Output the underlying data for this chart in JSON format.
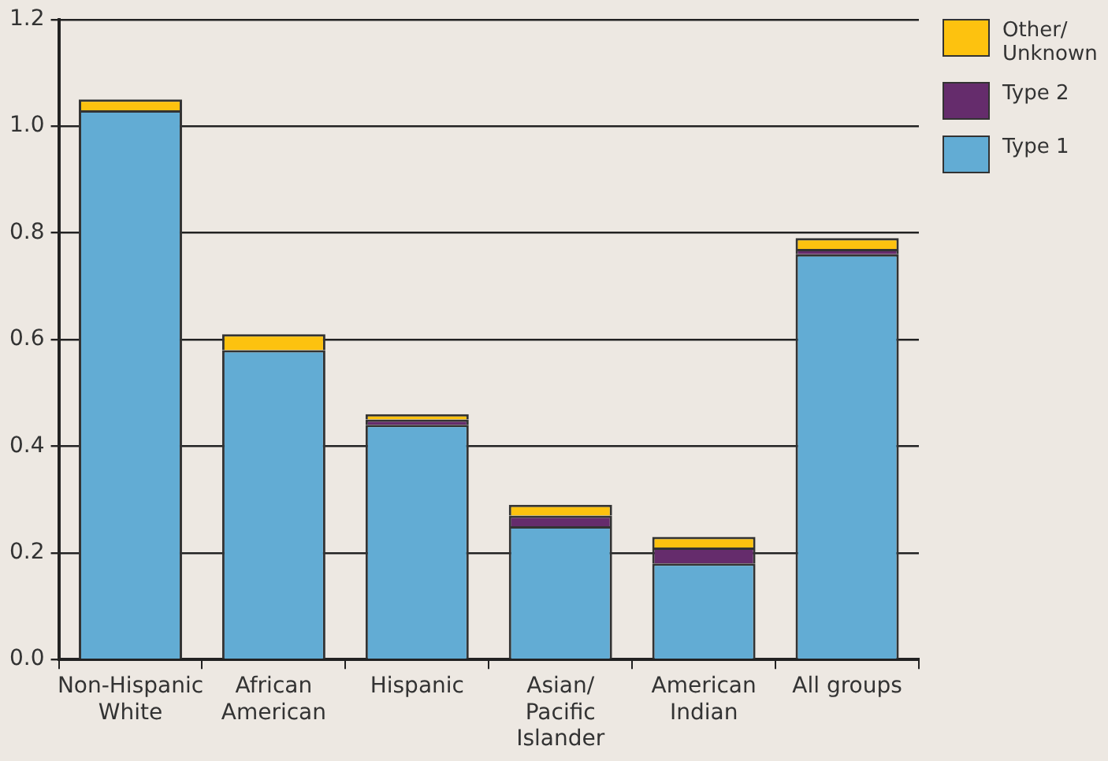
{
  "chart_data": {
    "type": "bar",
    "stacked": true,
    "categories": [
      "Non-Hispanic White",
      "African American",
      "Hispanic",
      "Asian/Pacific Islander",
      "American Indian",
      "All groups"
    ],
    "series": [
      {
        "name": "Type 1",
        "color": "#62acd4",
        "values": [
          1.03,
          0.58,
          0.44,
          0.25,
          0.18,
          0.76
        ]
      },
      {
        "name": "Type 2",
        "color": "#652c6c",
        "values": [
          0,
          0,
          0.01,
          0.02,
          0.03,
          0.01
        ]
      },
      {
        "name": "Other/Unknown",
        "color": "#fdc20f",
        "values": [
          0.02,
          0.03,
          0.01,
          0.02,
          0.02,
          0.02
        ]
      }
    ],
    "ylim": [
      0,
      1.2
    ],
    "yticks": [
      {
        "value": 0,
        "label": "0.0"
      },
      0.2,
      0.4,
      0.6,
      0.8,
      {
        "value": 1,
        "label": "1.0"
      },
      {
        "value": 1.2,
        "label": "1.2"
      }
    ],
    "grid": "y",
    "legend": "top right"
  }
}
